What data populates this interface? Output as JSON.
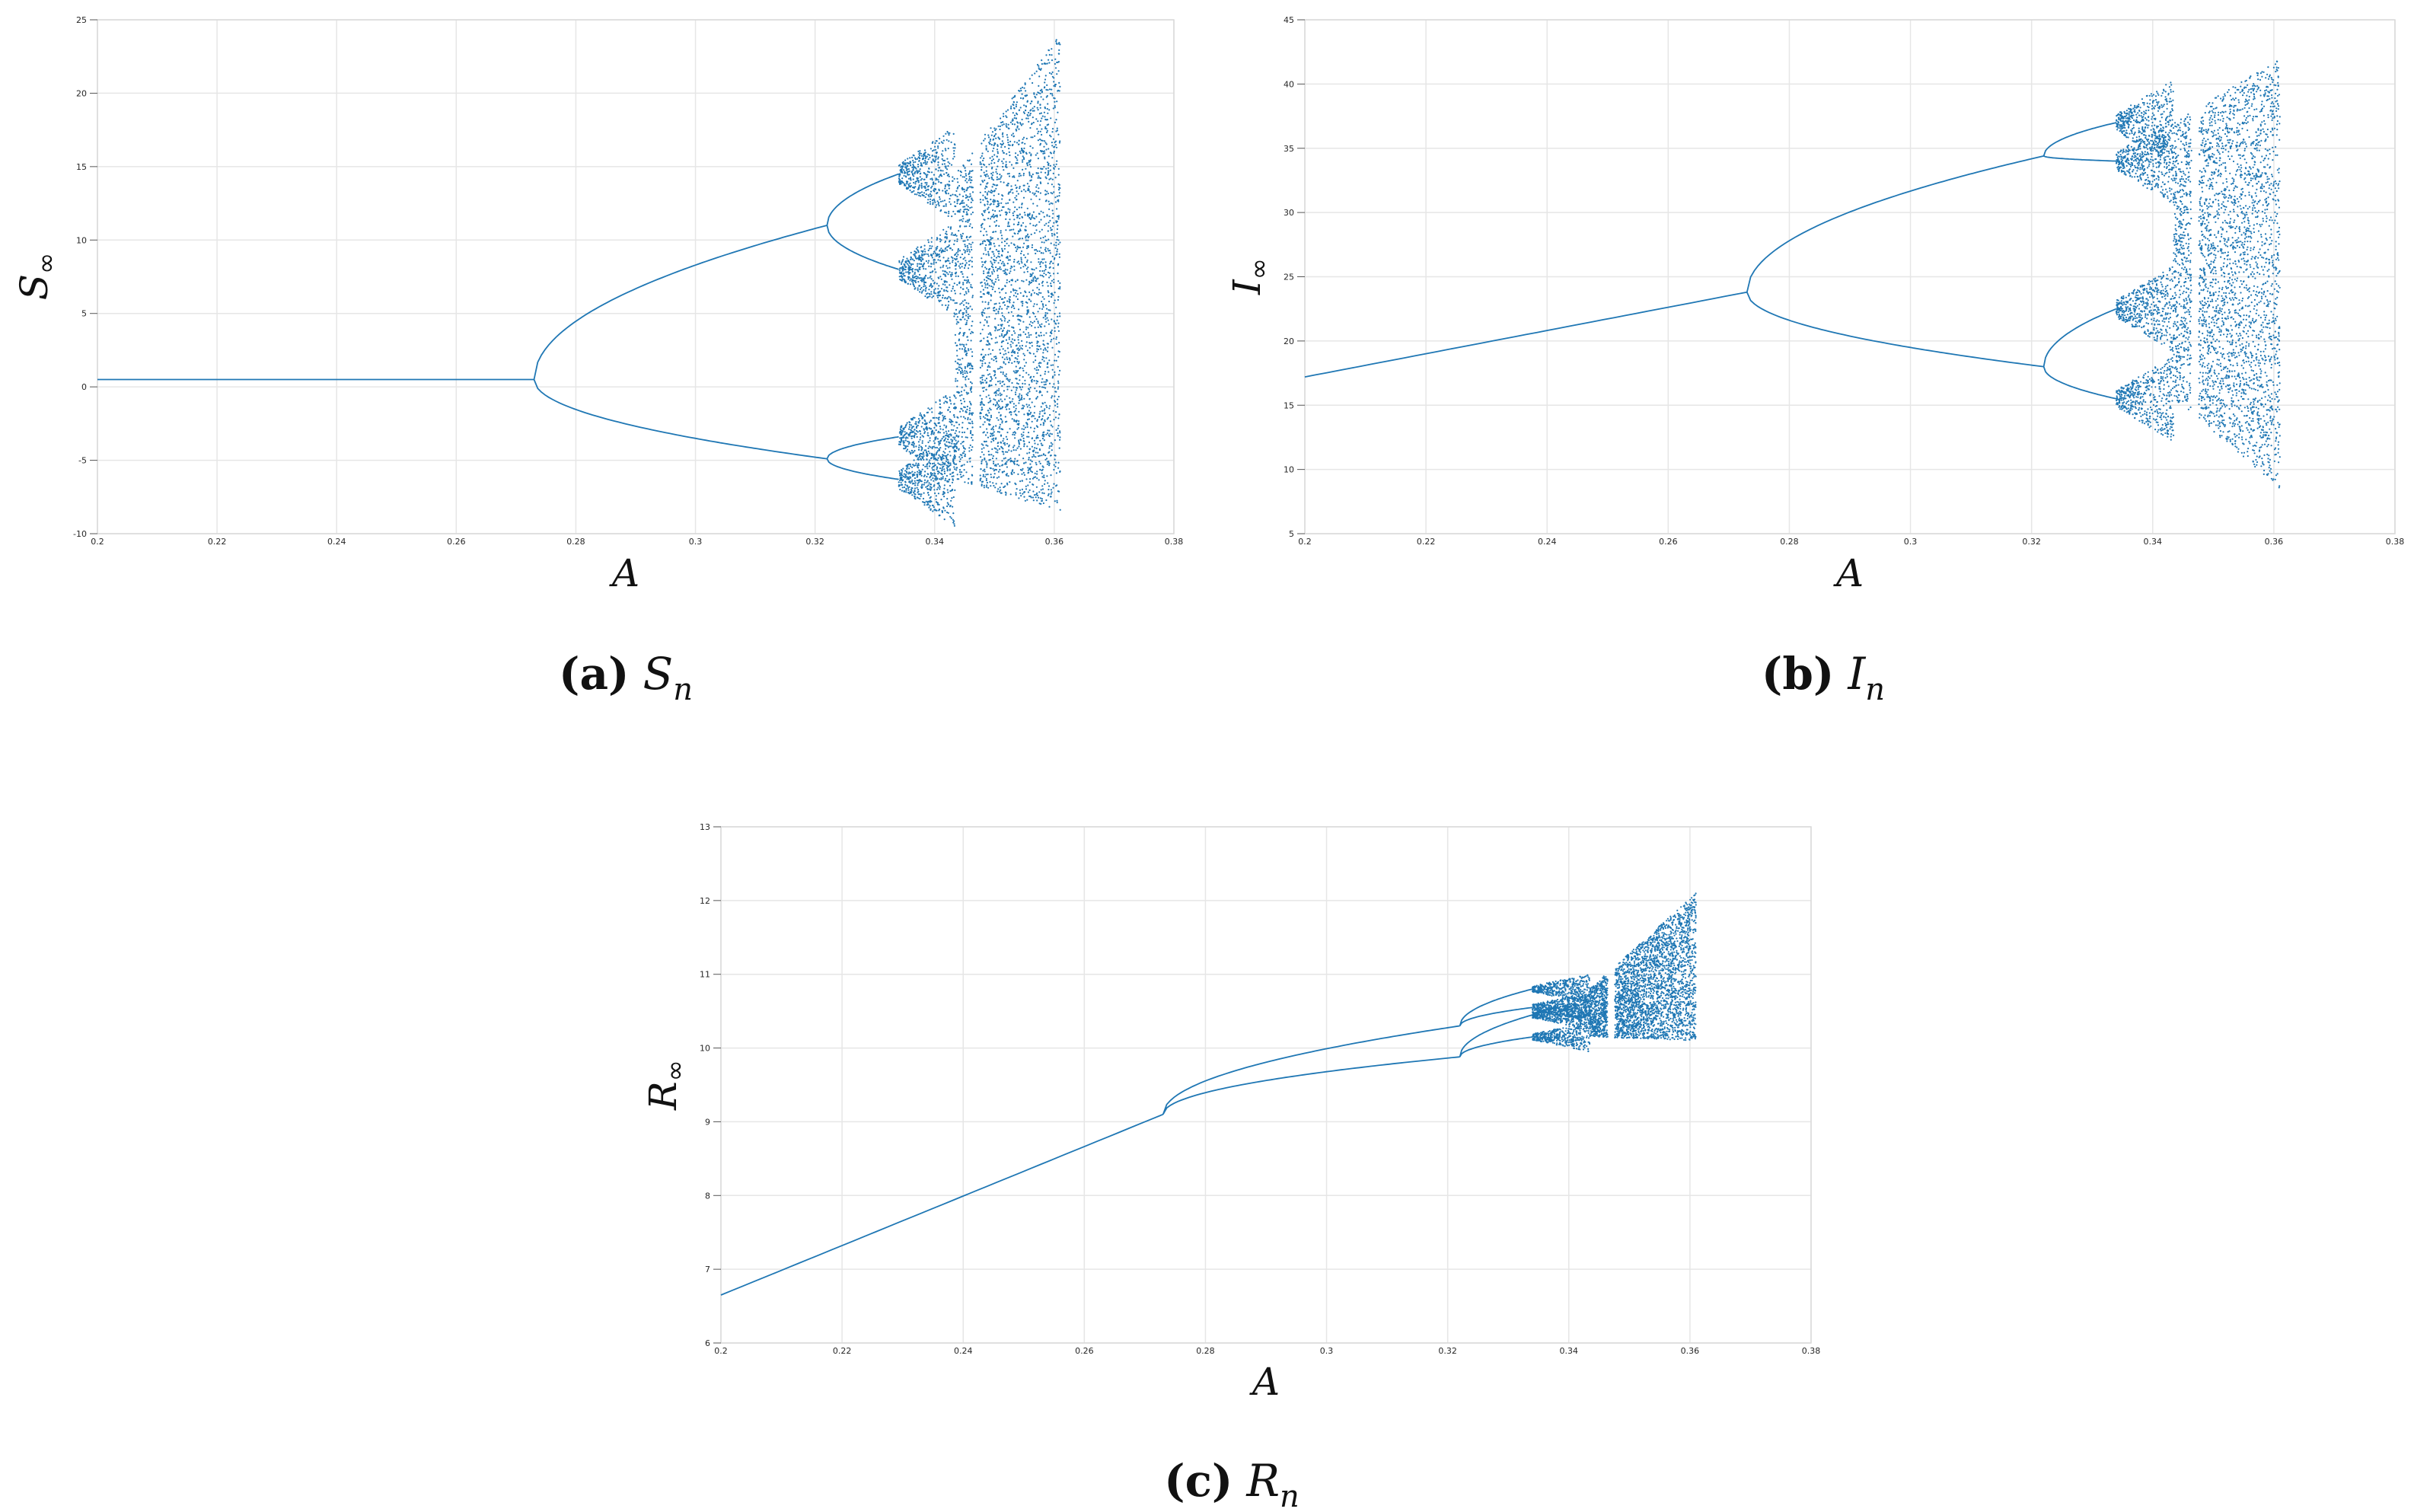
{
  "chart_data": [
    {
      "type": "scatter",
      "panel": "a",
      "caption_label": "(a)",
      "caption_var": "S",
      "caption_sub": "n",
      "xlabel": "A",
      "ylabel_sym": "S",
      "ylabel_sub": "∞",
      "xlim": [
        0.2,
        0.38
      ],
      "ylim": [
        -10,
        25
      ],
      "xticks": [
        "0.2",
        "0.22",
        "0.24",
        "0.26",
        "0.28",
        "0.3",
        "0.32",
        "0.34",
        "0.36",
        "0.38"
      ],
      "yticks": [
        "-10",
        "-5",
        "0",
        "5",
        "10",
        "15",
        "20",
        "25"
      ],
      "grid": true,
      "color": "#1f77b4",
      "bifurcation": {
        "fixed_point": {
          "x": [
            0.2,
            0.273
          ],
          "y": [
            0.5,
            0.5
          ]
        },
        "period_doubling_A": [
          0.273,
          0.322,
          0.334
        ],
        "period2_at_0322": [
          -4.9,
          11.0
        ],
        "period4_at_0334": [
          -6.3,
          -3.4,
          8.0,
          14.5
        ],
        "chaos_onset_A": 0.336,
        "window_A": 0.347,
        "end_A": 0.361,
        "chaos_range": [
          -8.5,
          24
        ]
      }
    },
    {
      "type": "scatter",
      "panel": "b",
      "caption_label": "(b)",
      "caption_var": "I",
      "caption_sub": "n",
      "xlabel": "A",
      "ylabel_sym": "I",
      "ylabel_sub": "∞",
      "xlim": [
        0.2,
        0.38
      ],
      "ylim": [
        5,
        45
      ],
      "xticks": [
        "0.2",
        "0.22",
        "0.24",
        "0.26",
        "0.28",
        "0.3",
        "0.32",
        "0.34",
        "0.36",
        "0.38"
      ],
      "yticks": [
        "5",
        "10",
        "15",
        "20",
        "25",
        "30",
        "35",
        "40",
        "45"
      ],
      "grid": true,
      "color": "#1f77b4",
      "bifurcation": {
        "fixed_point": {
          "x": [
            0.2,
            0.273
          ],
          "y": [
            17.2,
            23.8
          ]
        },
        "period_doubling_A": [
          0.273,
          0.322,
          0.334
        ],
        "period2_at_0322": [
          18.0,
          34.4
        ],
        "period4_at_0334": [
          15.5,
          22.5,
          34.0,
          37.0
        ],
        "chaos_onset_A": 0.336,
        "window_A": 0.347,
        "end_A": 0.361,
        "chaos_range": [
          8.5,
          42
        ]
      }
    },
    {
      "type": "scatter",
      "panel": "c",
      "caption_label": "(c)",
      "caption_var": "R",
      "caption_sub": "n",
      "xlabel": "A",
      "ylabel_sym": "R",
      "ylabel_sub": "∞",
      "xlim": [
        0.2,
        0.38
      ],
      "ylim": [
        6,
        13
      ],
      "xticks": [
        "0.2",
        "0.22",
        "0.24",
        "0.26",
        "0.28",
        "0.3",
        "0.32",
        "0.34",
        "0.36",
        "0.38"
      ],
      "yticks": [
        "6",
        "7",
        "8",
        "9",
        "10",
        "11",
        "12",
        "13"
      ],
      "grid": true,
      "color": "#1f77b4",
      "bifurcation": {
        "fixed_point": {
          "x": [
            0.2,
            0.273
          ],
          "y": [
            6.65,
            9.1
          ]
        },
        "period_doubling_A": [
          0.273,
          0.322,
          0.334
        ],
        "period2_at_0322": [
          9.88,
          10.3
        ],
        "period4_at_0334": [
          10.15,
          10.45,
          10.55,
          10.8
        ],
        "chaos_onset_A": 0.336,
        "window_A": 0.347,
        "end_A": 0.361,
        "chaos_range": [
          10.1,
          12.1
        ]
      }
    }
  ]
}
